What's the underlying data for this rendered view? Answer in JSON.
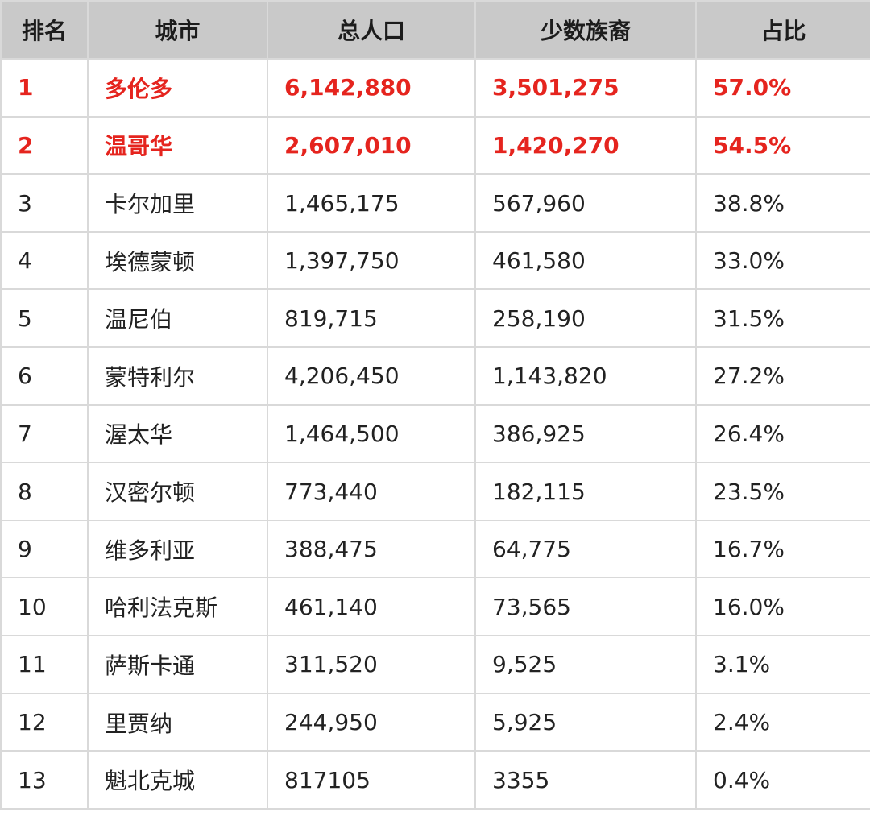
{
  "table": {
    "headers": [
      "排名",
      "城市",
      "总人口",
      "少数族裔",
      "占比"
    ],
    "highlight_color": "#e5241e",
    "header_background": "#c9c9c9",
    "rows": [
      {
        "rank": "1",
        "city": "多伦多",
        "population": "6,142,880",
        "minority": "3,501,275",
        "share": "57.0%",
        "highlight": true
      },
      {
        "rank": "2",
        "city": "温哥华",
        "population": "2,607,010",
        "minority": "1,420,270",
        "share": "54.5%",
        "highlight": true
      },
      {
        "rank": "3",
        "city": "卡尔加里",
        "population": "1,465,175",
        "minority": "567,960",
        "share": "38.8%",
        "highlight": false
      },
      {
        "rank": "4",
        "city": "埃德蒙顿",
        "population": "1,397,750",
        "minority": "461,580",
        "share": "33.0%",
        "highlight": false
      },
      {
        "rank": "5",
        "city": "温尼伯",
        "population": "819,715",
        "minority": "258,190",
        "share": "31.5%",
        "highlight": false
      },
      {
        "rank": "6",
        "city": "蒙特利尔",
        "population": "4,206,450",
        "minority": "1,143,820",
        "share": "27.2%",
        "highlight": false
      },
      {
        "rank": "7",
        "city": "渥太华",
        "population": "1,464,500",
        "minority": "386,925",
        "share": "26.4%",
        "highlight": false
      },
      {
        "rank": "8",
        "city": "汉密尔顿",
        "population": "773,440",
        "minority": "182,115",
        "share": "23.5%",
        "highlight": false
      },
      {
        "rank": "9",
        "city": "维多利亚",
        "population": "388,475",
        "minority": "64,775",
        "share": "16.7%",
        "highlight": false
      },
      {
        "rank": "10",
        "city": "哈利法克斯",
        "population": "461,140",
        "minority": "73,565",
        "share": "16.0%",
        "highlight": false
      },
      {
        "rank": "11",
        "city": "萨斯卡通",
        "population": "311,520",
        "minority": "9,525",
        "share": "3.1%",
        "highlight": false
      },
      {
        "rank": "12",
        "city": "里贾纳",
        "population": "244,950",
        "minority": "5,925",
        "share": "2.4%",
        "highlight": false
      },
      {
        "rank": "13",
        "city": "魁北克城",
        "population": "817105",
        "minority": "3355",
        "share": "0.4%",
        "highlight": false
      }
    ]
  }
}
